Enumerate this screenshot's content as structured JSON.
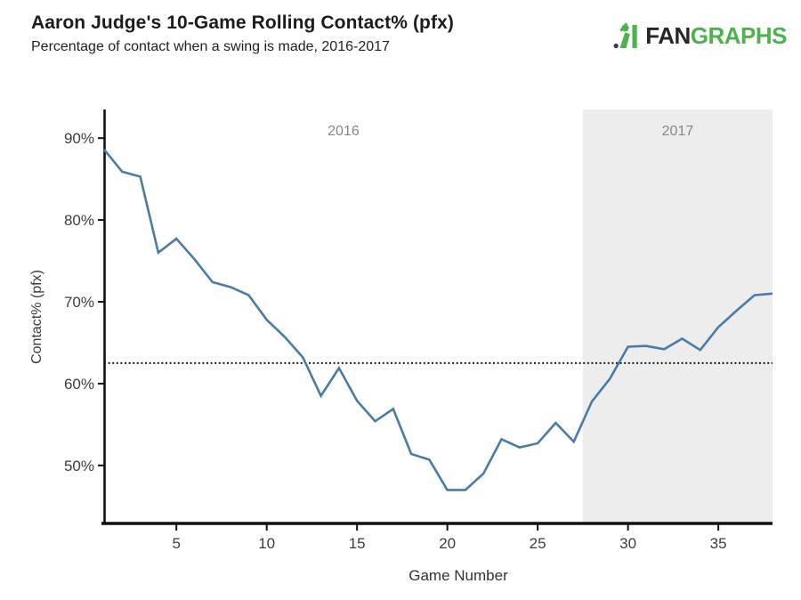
{
  "header": {
    "title": "Aaron Judge's 10-Game Rolling Contact% (pfx)",
    "subtitle": "Percentage of contact when a swing is made, 2016-2017"
  },
  "logo": {
    "fan": "FAN",
    "graphs": "GRAPHS",
    "brand_green": "#4cb24c",
    "brand_dark": "#262626"
  },
  "chart_data": {
    "type": "line",
    "title": "Aaron Judge's 10-Game Rolling Contact% (pfx)",
    "subtitle": "Percentage of contact when a swing is made, 2016-2017",
    "xlabel": "Game Number",
    "ylabel": "Contact% (pfx)",
    "series_name": "10-Game Rolling Contact% (pfx)",
    "x": [
      1,
      2,
      3,
      4,
      5,
      6,
      7,
      8,
      9,
      10,
      11,
      12,
      13,
      14,
      15,
      16,
      17,
      18,
      19,
      20,
      21,
      22,
      23,
      24,
      25,
      26,
      27,
      28,
      29,
      30,
      31,
      32,
      33,
      34,
      35,
      36,
      37,
      38
    ],
    "values": [
      88.6,
      85.9,
      85.3,
      76.0,
      77.7,
      75.2,
      72.4,
      71.8,
      70.8,
      67.8,
      65.7,
      63.2,
      58.5,
      61.9,
      57.9,
      55.4,
      56.9,
      51.4,
      50.7,
      47.0,
      47.0,
      49.0,
      53.2,
      52.2,
      52.7,
      55.2,
      52.9,
      57.8,
      60.6,
      64.5,
      64.6,
      64.2,
      65.5,
      64.1,
      66.9,
      68.9,
      70.8,
      71.0
    ],
    "yticks": [
      50,
      60,
      70,
      80,
      90
    ],
    "ytick_suffix": "%",
    "xticks": [
      5,
      10,
      15,
      20,
      25,
      30,
      35
    ],
    "xlim": [
      1,
      38
    ],
    "ylim": [
      42.8,
      93.5
    ],
    "reference_line": 62.5,
    "regions": [
      {
        "label": "2016",
        "start": 1,
        "end": 27.5,
        "shaded": false
      },
      {
        "label": "2017",
        "start": 27.5,
        "end": 38,
        "shaded": true
      }
    ],
    "grid": false,
    "legend": "none",
    "line_color": "#4a7ba7",
    "shade_color": "#ededed",
    "axis_color": "#111111",
    "tick_label_color": "#3d3d3d",
    "region_label_color": "#878787",
    "reference_line_color": "#1a1a1a"
  }
}
